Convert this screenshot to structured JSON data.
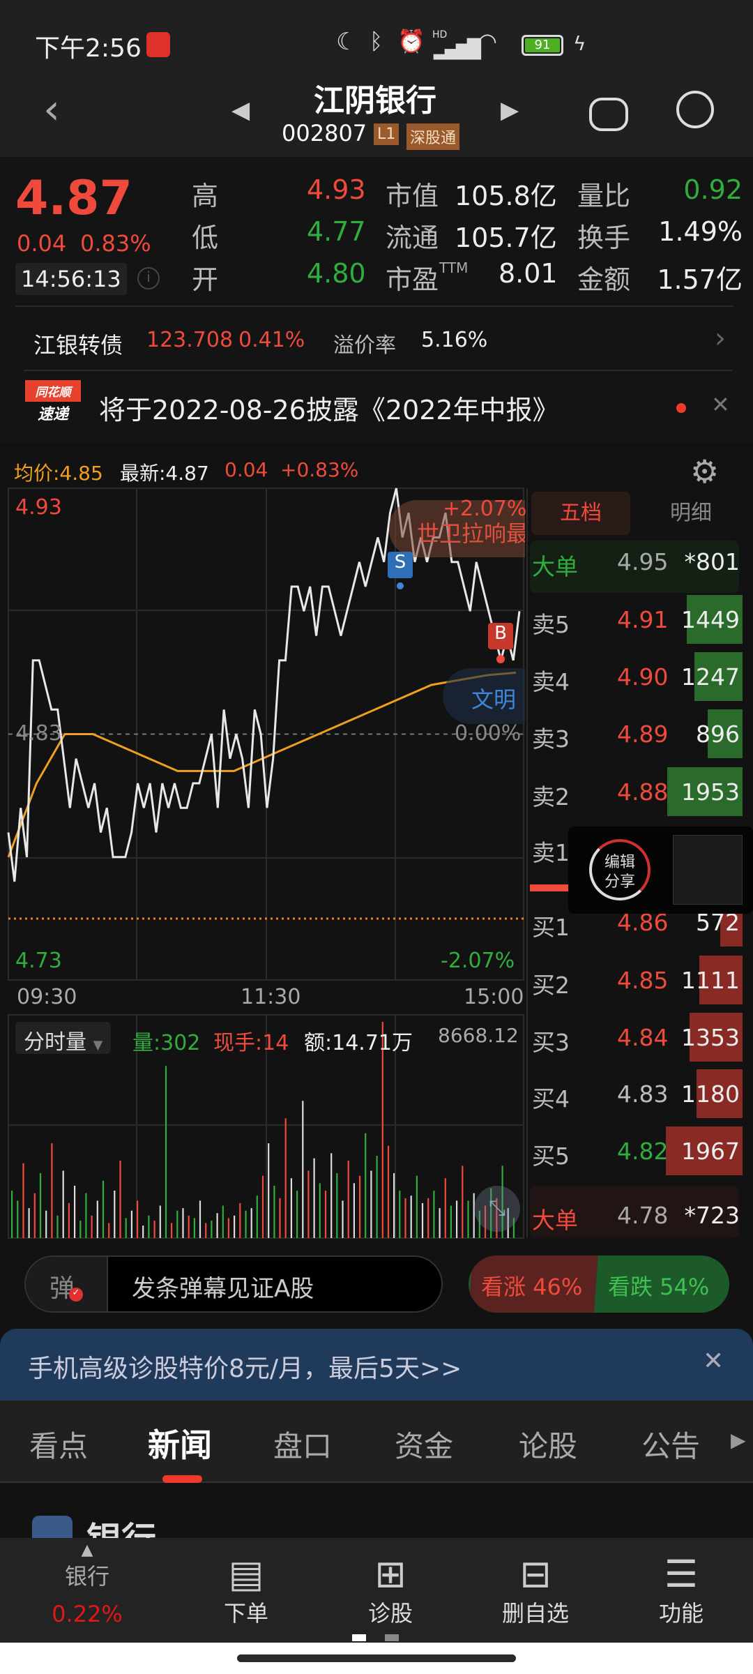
{
  "status_bar": {
    "time": "下午2:56",
    "battery": "91",
    "signal_label": "HD"
  },
  "header": {
    "title": "江阴银行",
    "code": "002807",
    "badge_level": "L1",
    "badge_connect": "深股通"
  },
  "quote": {
    "price": "4.87",
    "change": "0.04",
    "change_pct": "0.83%",
    "time": "14:56:13",
    "rows": [
      {
        "l1": "高",
        "v1": "4.93",
        "c1": "red",
        "l2": "市值",
        "v2": "105.8亿",
        "l3": "量比",
        "v3": "0.92",
        "c3": "green"
      },
      {
        "l1": "低",
        "v1": "4.77",
        "c1": "green",
        "l2": "流通",
        "v2": "105.7亿",
        "l3": "换手",
        "v3": "1.49%",
        "c3": "white"
      },
      {
        "l1": "开",
        "v1": "4.80",
        "c1": "green",
        "l2": "市盈",
        "l2sup": "TTM",
        "v2": "8.01",
        "l3": "金额",
        "v3": "1.57亿",
        "c3": "white"
      }
    ]
  },
  "bond": {
    "name": "江银转债",
    "price": "123.708",
    "pct": "0.41%",
    "premium_label": "溢价率",
    "premium": "5.16%"
  },
  "news_ticker": {
    "logo_top": "同花顺",
    "logo_bottom": "速递",
    "text": "将于2022-08-26披露《2022年中报》"
  },
  "intraday": {
    "avg_label": "均价:4.85",
    "latest_label": "最新:4.87",
    "change": "0.04",
    "change_pct": "+0.83%",
    "y_top": "4.93",
    "y_mid": "4.83",
    "y_bottom": "4.73",
    "pct_top": "+2.07%",
    "pct_mid": "0.00%",
    "pct_bottom": "-2.07%",
    "x_labels": [
      "09:30",
      "11:30",
      "15:00"
    ],
    "event_red": "世卫拉响最",
    "event_blue": "文明",
    "marker_sell": "S",
    "marker_buy": "B",
    "colors": {
      "price": "#e8e8e8",
      "avg": "#f0a020",
      "up": "#f04a3c",
      "down": "#2fae3d"
    }
  },
  "chart_data": [
    {
      "type": "line",
      "ylim": [
        4.73,
        4.93
      ],
      "x_ticks": [
        "09:30",
        "11:30",
        "15:00"
      ],
      "series": [
        {
          "values": [
            4.79,
            4.77,
            4.8,
            4.78,
            4.86,
            4.86,
            4.85,
            4.84,
            4.84,
            4.82,
            4.8,
            4.82,
            4.81,
            4.8,
            4.81,
            4.79,
            4.8,
            4.78,
            4.78,
            4.78,
            4.79,
            4.81,
            4.8,
            4.81,
            4.79,
            4.81,
            4.8,
            4.81,
            4.8,
            4.8,
            4.81,
            4.81,
            4.82,
            4.83,
            4.8,
            4.84,
            4.82,
            4.83,
            4.82,
            4.8,
            4.84,
            4.83,
            4.8,
            4.82,
            4.86,
            4.86,
            4.89,
            4.89,
            4.88,
            4.89,
            4.87,
            4.89,
            4.89,
            4.88,
            4.87,
            4.88,
            4.89,
            4.9,
            4.89,
            4.9,
            4.91,
            4.9,
            4.92,
            4.93,
            4.91,
            4.92,
            4.9,
            4.91,
            4.9,
            4.91,
            4.91,
            4.92,
            4.9,
            4.9,
            4.89,
            4.88,
            4.9,
            4.89,
            4.88,
            4.87,
            4.86,
            4.87,
            4.86,
            4.88
          ]
        },
        {
          "values": [
            4.78,
            4.81,
            4.83,
            4.83,
            4.825,
            4.82,
            4.815,
            4.815,
            4.815,
            4.82,
            4.825,
            4.83,
            4.835,
            4.84,
            4.845,
            4.85,
            4.852,
            4.854,
            4.855
          ]
        }
      ]
    },
    {
      "type": "bar",
      "title": "分时量",
      "ymax": 8668.12,
      "values": [
        1900,
        1500,
        3000,
        1200,
        1800,
        2600,
        1100,
        3800,
        900,
        2700,
        1400,
        2100,
        700,
        1800,
        900,
        1500,
        2300,
        600,
        1900,
        3100,
        800,
        1100,
        1500,
        500,
        900,
        700,
        1300,
        6900,
        600,
        1100,
        1200,
        900,
        800,
        1500,
        600,
        700,
        1000,
        1300,
        800,
        900,
        1400,
        1100,
        1200,
        1700,
        2500,
        3800,
        2100,
        1600,
        4800,
        2400,
        1900,
        5500,
        2700,
        3200,
        2200,
        1900,
        3400,
        2600,
        1500,
        3100,
        2200,
        2500,
        4200,
        2700,
        3300,
        8668,
        3700,
        2600,
        1900,
        1600,
        1700,
        2500,
        1400,
        1600,
        1900,
        1200,
        2400,
        1300,
        1500,
        2900,
        1500,
        1800,
        1100,
        1300,
        2000,
        1600,
        2900,
        1200,
        800
      ],
      "colors": "ggrwrgwrgwrwggrwgrwrgwrwgrwgrgwrgwrgwgrwrgwgrwgrrwgwrwgrwgwrwrgwgrrwgrwgwrgwrgwrgwgrgrgwg"
    },
    {
      "type": "table",
      "title": "五档"
    }
  ],
  "volume_header": {
    "selector": "分时量",
    "vol": "量:302",
    "hand": "现手:14",
    "amount": "额:14.71万",
    "ymax": "8668.12"
  },
  "order_book": {
    "tabs": [
      "五档",
      "明细"
    ],
    "big_sell": {
      "label": "大单",
      "price": "4.95",
      "vol": "*801"
    },
    "asks": [
      {
        "label": "卖5",
        "price": "4.91",
        "vol": "1449"
      },
      {
        "label": "卖4",
        "price": "4.90",
        "vol": "1247"
      },
      {
        "label": "卖3",
        "price": "4.89",
        "vol": "896"
      },
      {
        "label": "卖2",
        "price": "4.88",
        "vol": "1953"
      },
      {
        "label": "卖1",
        "price": "",
        "vol": ""
      }
    ],
    "bids": [
      {
        "label": "买1",
        "price": "4.86",
        "vol": "572",
        "pc": "red"
      },
      {
        "label": "买2",
        "price": "4.85",
        "vol": "1111",
        "pc": "red"
      },
      {
        "label": "买3",
        "price": "4.84",
        "vol": "1353",
        "pc": "red"
      },
      {
        "label": "买4",
        "price": "4.83",
        "vol": "1180",
        "pc": "gray"
      },
      {
        "label": "买5",
        "price": "4.82",
        "vol": "1967",
        "pc": "green"
      }
    ],
    "big_buy": {
      "label": "大单",
      "price": "4.78",
      "vol": "*723"
    }
  },
  "share_popup": {
    "line1": "编辑",
    "line2": "分享"
  },
  "danmaku": {
    "icon_label": "弹",
    "placeholder": "发条弹幕见证A股"
  },
  "sentiment": {
    "up": "看涨 46%",
    "down": "看跌 54%",
    "up_fraction": 0.46
  },
  "promo": {
    "text": "手机高级诊股特价8元/月，最后5天>>"
  },
  "tabs": {
    "items": [
      "看点",
      "新闻",
      "盘口",
      "资金",
      "论股",
      "公告"
    ],
    "active": 1
  },
  "content_peek": {
    "title": "银行"
  },
  "bottom_nav": {
    "sector": "银行",
    "sector_pct": "0.22%",
    "items": [
      "下单",
      "诊股",
      "删自选",
      "功能"
    ]
  }
}
